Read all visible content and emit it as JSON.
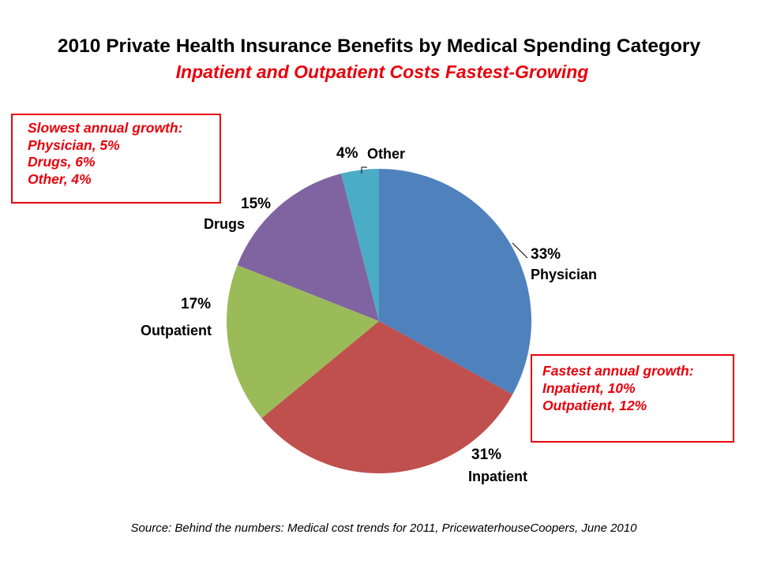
{
  "title": "2010 Private Health Insurance Benefits by Medical Spending Category",
  "subtitle": "Inpatient and Outpatient Costs Fastest-Growing",
  "callout_slowest": {
    "heading": "Slowest annual growth:",
    "lines": [
      "Physician, 5%",
      "Drugs, 6%",
      "Other, 4%"
    ]
  },
  "callout_fastest": {
    "heading": "Fastest annual growth:",
    "lines": [
      "Inpatient, 10%",
      "Outpatient, 12%"
    ]
  },
  "source": "Source:  Behind the numbers: Medical cost trends for 2011, PricewaterhouseCoopers, June 2010",
  "colors": {
    "accent_red": "#e8000b",
    "Physician": "#4f81bd",
    "Inpatient": "#c0504d",
    "Outpatient": "#9bbb59",
    "Drugs": "#8064a2",
    "Other": "#4bacc6"
  },
  "chart_data": {
    "type": "pie",
    "title": "2010 Private Health Insurance Benefits by Medical Spending Category",
    "start": "12 o'clock, clockwise",
    "slices": [
      {
        "name": "Physician",
        "value": 33,
        "label": "33%"
      },
      {
        "name": "Inpatient",
        "value": 31,
        "label": "31%"
      },
      {
        "name": "Outpatient",
        "value": 17,
        "label": "17%"
      },
      {
        "name": "Drugs",
        "value": 15,
        "label": "15%"
      },
      {
        "name": "Other",
        "value": 4,
        "label": "4%"
      }
    ]
  }
}
